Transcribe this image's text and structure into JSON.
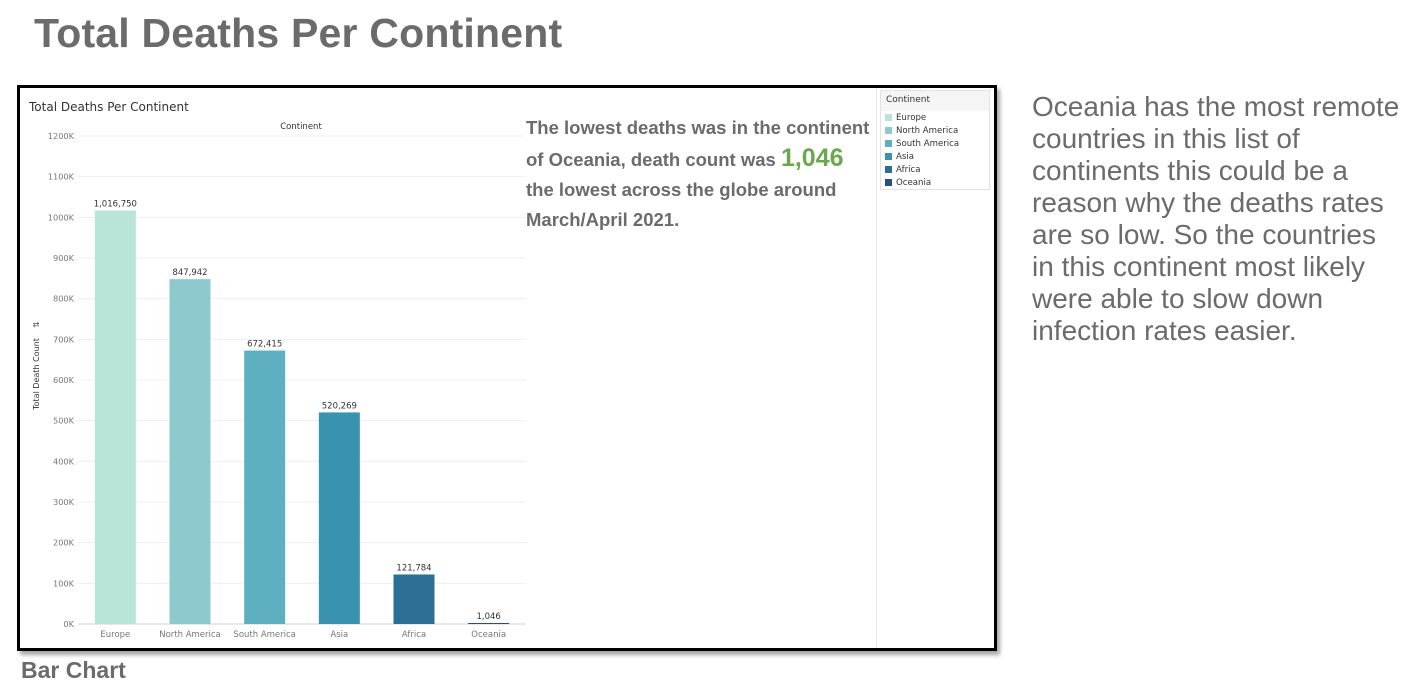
{
  "slide": {
    "title": "Total Deaths Per Continent",
    "caption": "Bar Chart",
    "side_note": "Oceania has the most remote countries in this list of continents this could be a reason why the deaths rates are so low. So the countries in this continent most likely were able to slow down infection rates easier."
  },
  "annotation": {
    "text_before": "The lowest deaths was in the continent of Oceania, death count was ",
    "highlight": "1,046",
    "text_after": " the lowest across the globe around March/April 2021.",
    "highlight_color": "#6aa84f"
  },
  "legend": {
    "title": "Continent",
    "items": [
      {
        "label": "Europe",
        "color": "#b9e4d9"
      },
      {
        "label": "North America",
        "color": "#8ecacd"
      },
      {
        "label": "South America",
        "color": "#5eb0c1"
      },
      {
        "label": "Asia",
        "color": "#3992b0"
      },
      {
        "label": "Africa",
        "color": "#2d6f94"
      },
      {
        "label": "Oceania",
        "color": "#2a4f78"
      }
    ]
  },
  "chart_data": {
    "type": "bar",
    "title": "Total Deaths Per Continent",
    "column_header": "Continent",
    "ylabel": "Total Death Count",
    "ylim": [
      0,
      1200000
    ],
    "yticks": [
      0,
      100000,
      200000,
      300000,
      400000,
      500000,
      600000,
      700000,
      800000,
      900000,
      1000000,
      1100000,
      1200000
    ],
    "ytick_labels": [
      "0K",
      "100K",
      "200K",
      "300K",
      "400K",
      "500K",
      "600K",
      "700K",
      "800K",
      "900K",
      "1000K",
      "1100K",
      "1200K"
    ],
    "categories": [
      "Europe",
      "North America",
      "South America",
      "Asia",
      "Africa",
      "Oceania"
    ],
    "values": [
      1016750,
      847942,
      672415,
      520269,
      121784,
      1046
    ],
    "value_labels": [
      "1,016,750",
      "847,942",
      "672,415",
      "520,269",
      "121,784",
      "1,046"
    ],
    "colors": [
      "#b9e4d9",
      "#8ecacd",
      "#5eb0c1",
      "#3992b0",
      "#2d6f94",
      "#2a4f78"
    ],
    "grid": true,
    "legend_position": "right"
  }
}
